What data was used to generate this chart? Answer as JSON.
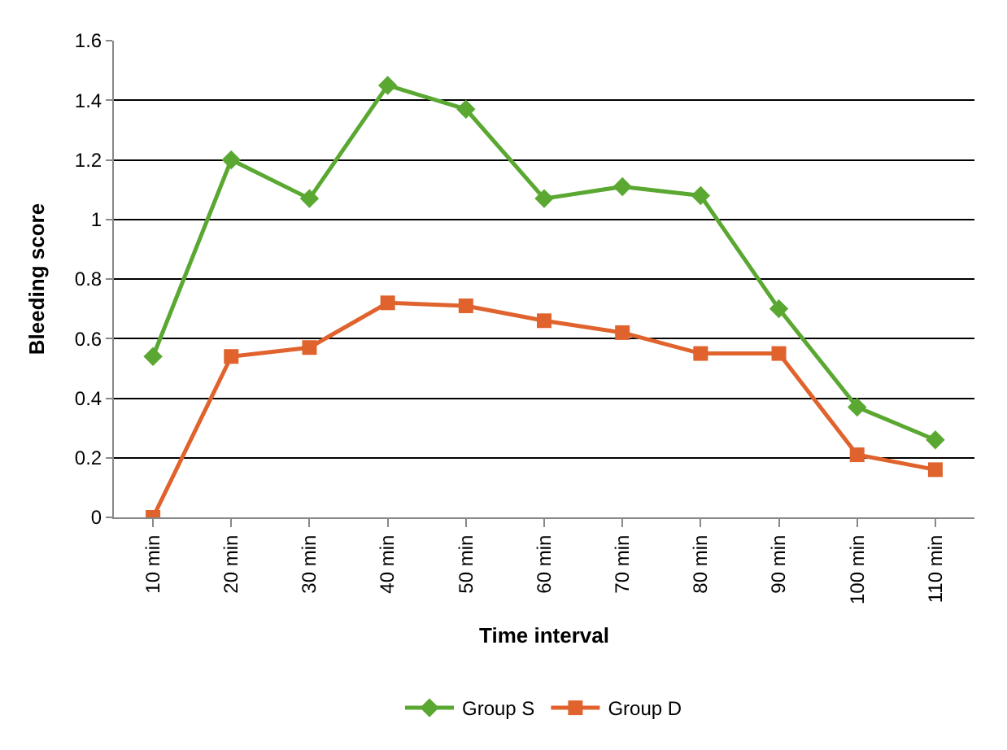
{
  "chart_data": {
    "type": "line",
    "xlabel": "Time interval",
    "ylabel": "Bleeding score",
    "categories": [
      "10 min",
      "20 min",
      "30 min",
      "40 min",
      "50 min",
      "60 min",
      "70 min",
      "80 min",
      "90 min",
      "100 min",
      "110 min"
    ],
    "series": [
      {
        "name": "Group S",
        "color": "#5aa832",
        "marker": "diamond",
        "values": [
          0.54,
          1.2,
          1.07,
          1.45,
          1.37,
          1.07,
          1.11,
          1.08,
          0.7,
          0.37,
          0.26
        ]
      },
      {
        "name": "Group D",
        "color": "#e0622c",
        "marker": "square",
        "values": [
          0,
          0.54,
          0.57,
          0.72,
          0.71,
          0.66,
          0.62,
          0.55,
          0.55,
          0.21,
          0.16
        ]
      }
    ],
    "ylim": [
      0,
      1.6
    ],
    "yticks": [
      0,
      0.2,
      0.4,
      0.6,
      0.8,
      1,
      1.2,
      1.4,
      1.6
    ],
    "grid": "y",
    "legend": "bottom",
    "line_style": "solid"
  }
}
